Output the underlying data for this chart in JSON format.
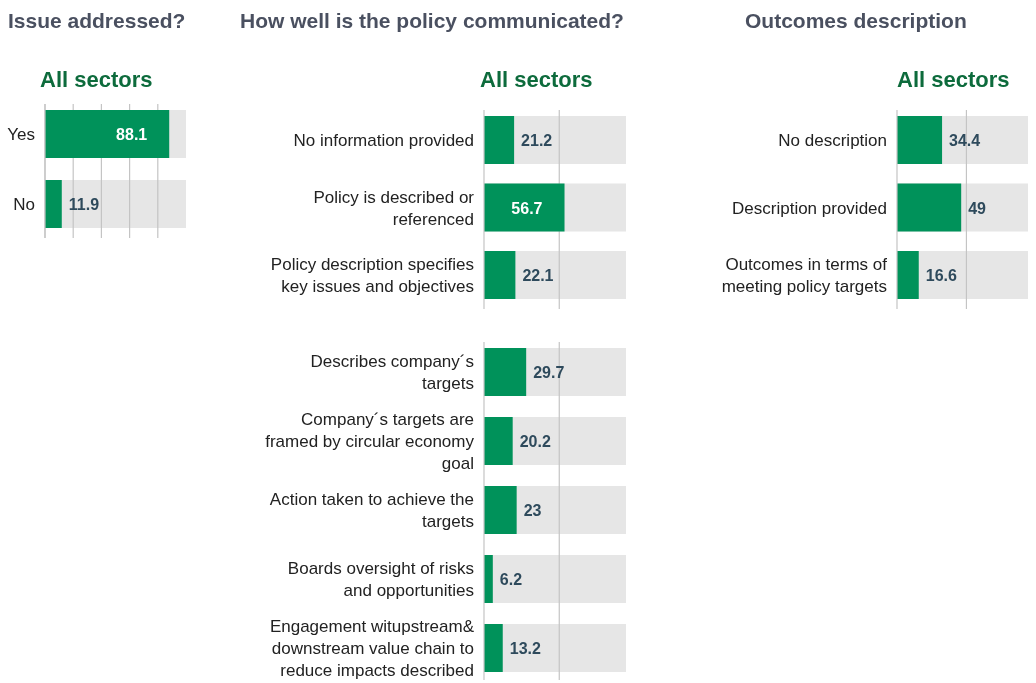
{
  "chart_data": [
    {
      "type": "bar",
      "orientation": "horizontal",
      "title": "Issue addressed?",
      "subtitle": "All sectors",
      "categories": [
        "Yes",
        "No"
      ],
      "values": [
        88.1,
        11.9
      ],
      "color": "#00925a",
      "xlim": [
        0,
        100
      ],
      "xticks": [
        {
          "value": 0,
          "label": null
        },
        {
          "value": 20,
          "label": null
        },
        {
          "value": 40,
          "label": null
        },
        {
          "value": 60,
          "label": null
        },
        {
          "value": 80,
          "label": null
        }
      ],
      "grid": "x",
      "data_labels": true
    },
    {
      "type": "bar",
      "orientation": "horizontal",
      "title": "How well is the policy communicated?",
      "subtitle": "All sectors",
      "categories": [
        "No information provided",
        "Policy is described or referenced",
        "Policy description specifies key issues and objectives"
      ],
      "values": [
        21.2,
        56.7,
        22.1
      ],
      "color": "#00925a",
      "xlim": [
        0,
        100
      ],
      "ref_lines": [
        {
          "axis": "x",
          "value": 53,
          "color": "#c4c4c4"
        }
      ],
      "data_labels": true
    },
    {
      "type": "bar",
      "orientation": "horizontal",
      "categories": [
        "Describes company´s targets",
        "Company´s targets are framed by circular economy goal",
        "Action taken to achieve the targets",
        "Boards oversight of risks and opportunities",
        "Engagement witupstream& downstream value chain to reduce impacts described"
      ],
      "values": [
        29.7,
        20.2,
        23,
        6.2,
        13.2
      ],
      "color": "#00925a",
      "xlim": [
        0,
        100
      ],
      "ref_lines": [
        {
          "axis": "x",
          "value": 53,
          "color": "#c4c4c4"
        }
      ],
      "data_labels": true
    },
    {
      "type": "bar",
      "orientation": "horizontal",
      "title": "Outcomes description",
      "subtitle": "All sectors",
      "categories": [
        "No description",
        "Description provided",
        "Outcomes in terms of meeting policy targets"
      ],
      "values": [
        34.4,
        49,
        16.6
      ],
      "color": "#00925a",
      "xlim": [
        0,
        100
      ],
      "ref_lines": [
        {
          "axis": "x",
          "value": 53,
          "color": "#c4c4c4"
        }
      ],
      "data_labels": true
    }
  ]
}
